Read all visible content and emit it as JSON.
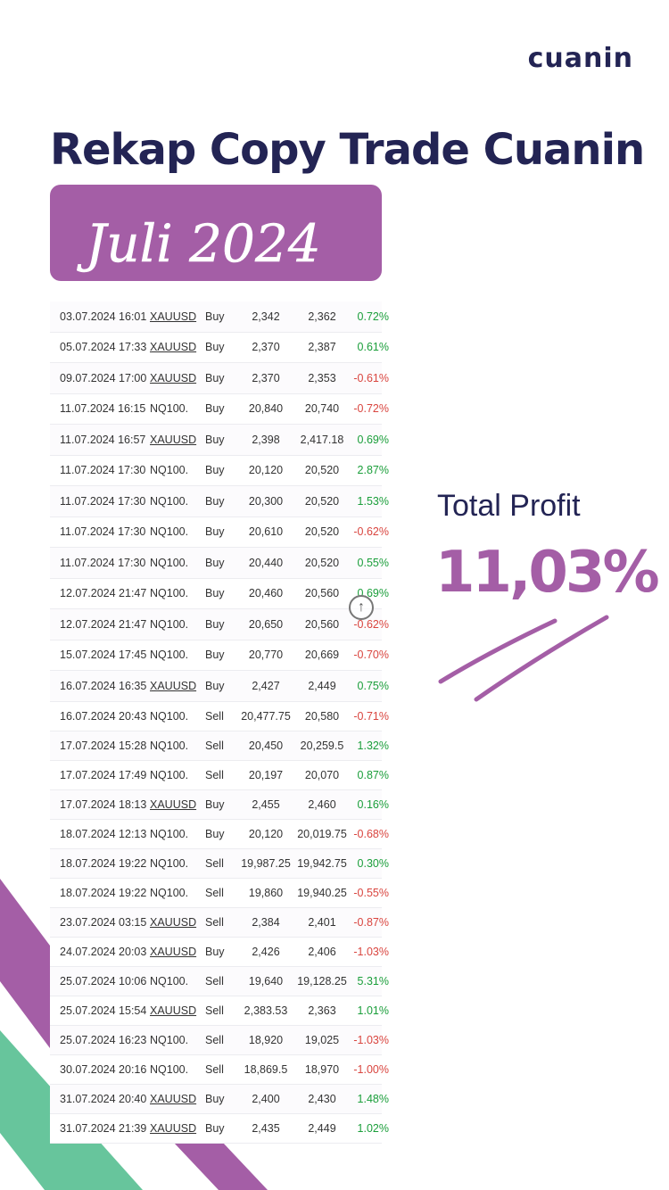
{
  "brand": {
    "logo": "cuanin"
  },
  "header": {
    "title": "Rekap Copy Trade Cuanin",
    "month": "Juli 2024"
  },
  "summary": {
    "label": "Total Profit",
    "value": "11,03%"
  },
  "colors": {
    "navy": "#232454",
    "purple": "#a45ea6",
    "green": "#67c59c",
    "positive": "#1a9e3a",
    "negative": "#d9453f"
  },
  "icons": {
    "scroll": "arrow-up-circle-icon"
  },
  "trades": [
    {
      "date": "03.07.2024 16:01",
      "symbol": "XAUUSD",
      "side": "Buy",
      "open": "2,342",
      "close": "2,362",
      "pct": "0.72%"
    },
    {
      "date": "05.07.2024 17:33",
      "symbol": "XAUUSD",
      "side": "Buy",
      "open": "2,370",
      "close": "2,387",
      "pct": "0.61%"
    },
    {
      "date": "09.07.2024 17:00",
      "symbol": "XAUUSD",
      "side": "Buy",
      "open": "2,370",
      "close": "2,353",
      "pct": "-0.61%"
    },
    {
      "date": "11.07.2024 16:15",
      "symbol": "NQ100.",
      "side": "Buy",
      "open": "20,840",
      "close": "20,740",
      "pct": "-0.72%"
    },
    {
      "date": "11.07.2024 16:57",
      "symbol": "XAUUSD",
      "side": "Buy",
      "open": "2,398",
      "close": "2,417.18",
      "pct": "0.69%"
    },
    {
      "date": "11.07.2024 17:30",
      "symbol": "NQ100.",
      "side": "Buy",
      "open": "20,120",
      "close": "20,520",
      "pct": "2.87%"
    },
    {
      "date": "11.07.2024 17:30",
      "symbol": "NQ100.",
      "side": "Buy",
      "open": "20,300",
      "close": "20,520",
      "pct": "1.53%"
    },
    {
      "date": "11.07.2024 17:30",
      "symbol": "NQ100.",
      "side": "Buy",
      "open": "20,610",
      "close": "20,520",
      "pct": "-0.62%"
    },
    {
      "date": "11.07.2024 17:30",
      "symbol": "NQ100.",
      "side": "Buy",
      "open": "20,440",
      "close": "20,520",
      "pct": "0.55%"
    },
    {
      "date": "12.07.2024 21:47",
      "symbol": "NQ100.",
      "side": "Buy",
      "open": "20,460",
      "close": "20,560",
      "pct": "0.69%"
    },
    {
      "date": "12.07.2024 21:47",
      "symbol": "NQ100.",
      "side": "Buy",
      "open": "20,650",
      "close": "20,560",
      "pct": "-0.62%"
    },
    {
      "date": "15.07.2024 17:45",
      "symbol": "NQ100.",
      "side": "Buy",
      "open": "20,770",
      "close": "20,669",
      "pct": "-0.70%"
    },
    {
      "date": "16.07.2024 16:35",
      "symbol": "XAUUSD",
      "side": "Buy",
      "open": "2,427",
      "close": "2,449",
      "pct": "0.75%"
    },
    {
      "date": "16.07.2024 20:43",
      "symbol": "NQ100.",
      "side": "Sell",
      "open": "20,477.75",
      "close": "20,580",
      "pct": "-0.71%"
    },
    {
      "date": "17.07.2024 15:28",
      "symbol": "NQ100.",
      "side": "Sell",
      "open": "20,450",
      "close": "20,259.5",
      "pct": "1.32%"
    },
    {
      "date": "17.07.2024 17:49",
      "symbol": "NQ100.",
      "side": "Sell",
      "open": "20,197",
      "close": "20,070",
      "pct": "0.87%"
    },
    {
      "date": "17.07.2024 18:13",
      "symbol": "XAUUSD",
      "side": "Buy",
      "open": "2,455",
      "close": "2,460",
      "pct": "0.16%"
    },
    {
      "date": "18.07.2024 12:13",
      "symbol": "NQ100.",
      "side": "Buy",
      "open": "20,120",
      "close": "20,019.75",
      "pct": "-0.68%"
    },
    {
      "date": "18.07.2024 19:22",
      "symbol": "NQ100.",
      "side": "Sell",
      "open": "19,987.25",
      "close": "19,942.75",
      "pct": "0.30%"
    },
    {
      "date": "18.07.2024 19:22",
      "symbol": "NQ100.",
      "side": "Sell",
      "open": "19,860",
      "close": "19,940.25",
      "pct": "-0.55%"
    },
    {
      "date": "23.07.2024 03:15",
      "symbol": "XAUUSD",
      "side": "Sell",
      "open": "2,384",
      "close": "2,401",
      "pct": "-0.87%"
    },
    {
      "date": "24.07.2024 20:03",
      "symbol": "XAUUSD",
      "side": "Buy",
      "open": "2,426",
      "close": "2,406",
      "pct": "-1.03%"
    },
    {
      "date": "25.07.2024 10:06",
      "symbol": "NQ100.",
      "side": "Sell",
      "open": "19,640",
      "close": "19,128.25",
      "pct": "5.31%"
    },
    {
      "date": "25.07.2024 15:54",
      "symbol": "XAUUSD",
      "side": "Sell",
      "open": "2,383.53",
      "close": "2,363",
      "pct": "1.01%"
    },
    {
      "date": "25.07.2024 16:23",
      "symbol": "NQ100.",
      "side": "Sell",
      "open": "18,920",
      "close": "19,025",
      "pct": "-1.03%"
    },
    {
      "date": "30.07.2024 20:16",
      "symbol": "NQ100.",
      "side": "Sell",
      "open": "18,869.5",
      "close": "18,970",
      "pct": "-1.00%"
    },
    {
      "date": "31.07.2024 20:40",
      "symbol": "XAUUSD",
      "side": "Buy",
      "open": "2,400",
      "close": "2,430",
      "pct": "1.48%"
    },
    {
      "date": "31.07.2024 21:39",
      "symbol": "XAUUSD",
      "side": "Buy",
      "open": "2,435",
      "close": "2,449",
      "pct": "1.02%"
    }
  ]
}
